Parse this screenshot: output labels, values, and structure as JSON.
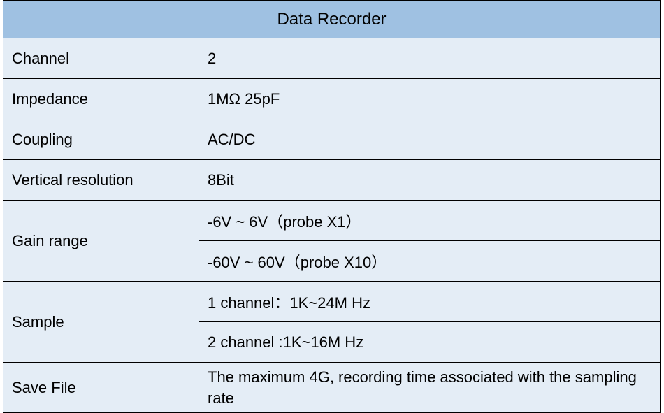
{
  "colors": {
    "header_bg": "#9fc1e2",
    "row_bg": "#e4edf6",
    "border": "#000000",
    "text": "#000000"
  },
  "table": {
    "title": "Data Recorder",
    "rows": [
      {
        "label": "Channel",
        "values": [
          "2"
        ]
      },
      {
        "label": "Impedance",
        "values": [
          "1MΩ 25pF"
        ]
      },
      {
        "label": "Coupling",
        "values": [
          "AC/DC"
        ]
      },
      {
        "label": "Vertical resolution",
        "values": [
          "8Bit"
        ]
      },
      {
        "label": "Gain range",
        "values": [
          "-6V ~ 6V（probe X1）",
          "-60V ~ 60V（probe X10）"
        ]
      },
      {
        "label": "Sample",
        "values": [
          "1 channel：1K~24M Hz",
          "2 channel :1K~16M Hz"
        ]
      },
      {
        "label": "Save File",
        "values": [
          "The maximum 4G, recording time associated with the sampling rate"
        ]
      }
    ]
  }
}
